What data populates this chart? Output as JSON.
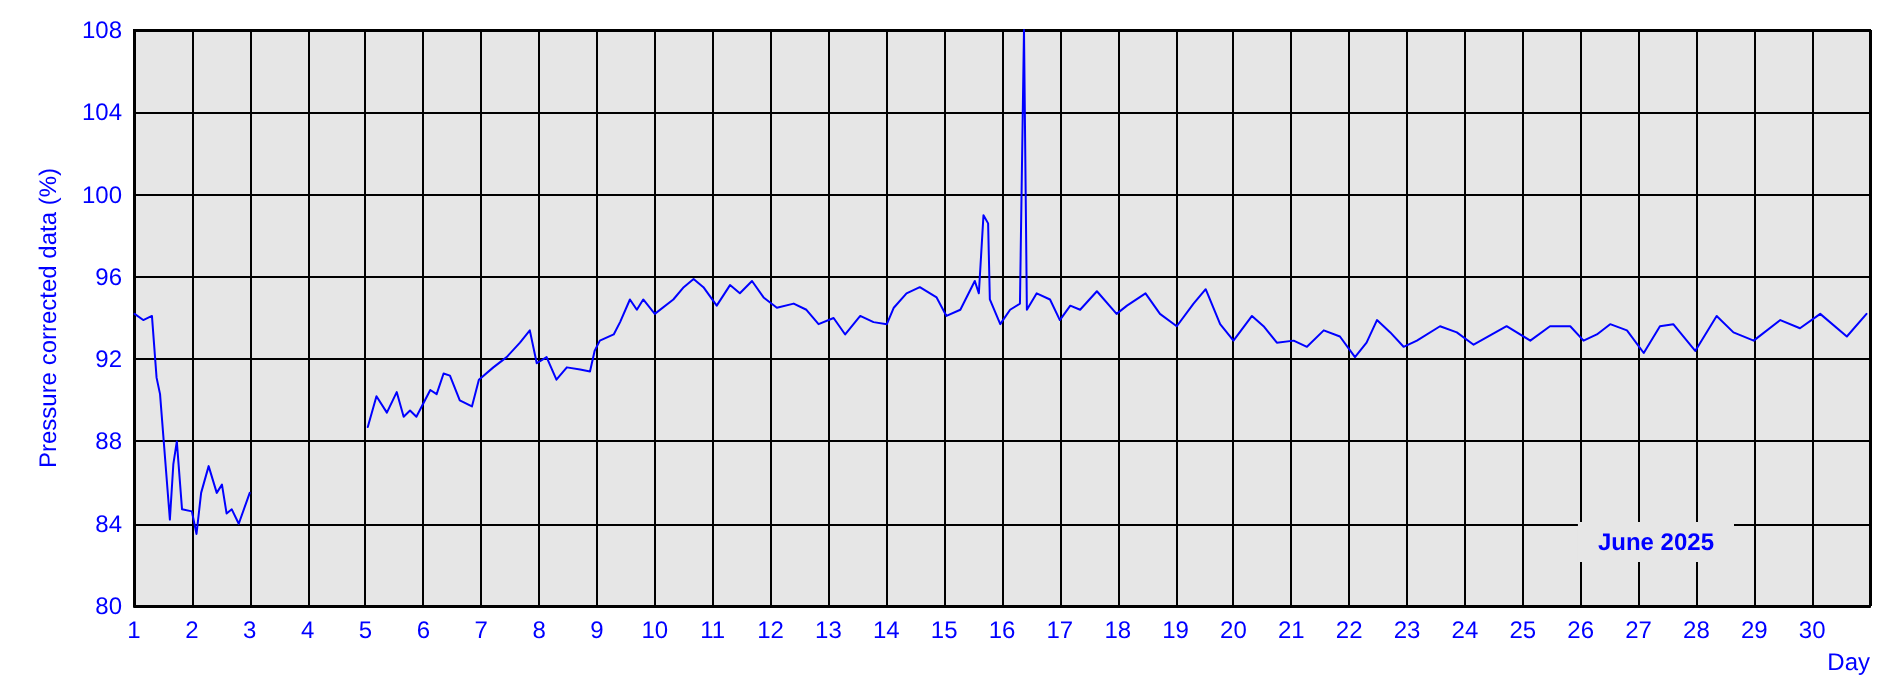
{
  "chart_data": {
    "type": "line",
    "xlabel": "Day",
    "ylabel": "Pressure corrected data (%)",
    "annotations": [
      "June 2025"
    ],
    "xlim": [
      1,
      31
    ],
    "xticks": [
      1,
      2,
      3,
      4,
      5,
      6,
      7,
      8,
      9,
      10,
      11,
      12,
      13,
      14,
      15,
      16,
      17,
      18,
      19,
      20,
      21,
      22,
      23,
      24,
      25,
      26,
      27,
      28,
      29,
      30
    ],
    "ylim": [
      80,
      108
    ],
    "yticks": [
      80,
      84,
      88,
      92,
      96,
      100,
      104,
      108
    ],
    "grid": true,
    "marker": "none",
    "line_style": "solid",
    "series": [
      {
        "color": "#0000ff",
        "x": [
          1.01,
          1.16,
          1.31,
          1.39,
          1.45,
          1.62,
          1.68,
          1.74,
          1.83,
          2.0,
          2.08,
          2.16,
          2.29,
          2.43,
          2.52,
          2.6,
          2.69,
          2.81,
          3.0,
          4.0,
          5.04,
          5.19,
          5.37,
          5.54,
          5.66,
          5.77,
          5.88,
          6.12,
          6.23,
          6.35,
          6.46,
          6.63,
          6.84,
          6.96,
          7.21,
          7.44,
          7.67,
          7.84,
          7.96,
          8.13,
          8.3,
          8.48,
          8.71,
          8.88,
          8.96,
          9.05,
          9.29,
          9.4,
          9.57,
          9.69,
          9.8,
          10.0,
          10.32,
          10.5,
          10.67,
          10.84,
          11.07,
          11.3,
          11.47,
          11.68,
          11.88,
          12.11,
          12.4,
          12.62,
          12.83,
          13.09,
          13.29,
          13.55,
          13.78,
          14.01,
          14.13,
          14.35,
          14.58,
          14.87,
          15.04,
          15.28,
          15.53,
          15.6,
          15.68,
          15.76,
          15.79,
          15.97,
          16.14,
          16.31,
          16.38,
          16.43,
          16.6,
          16.83,
          17.0,
          17.18,
          17.35,
          17.64,
          17.98,
          18.16,
          18.48,
          18.73,
          19.02,
          19.31,
          19.52,
          19.77,
          20.0,
          20.32,
          20.52,
          20.75,
          21.04,
          21.27,
          21.56,
          21.84,
          22.1,
          22.3,
          22.48,
          22.71,
          22.94,
          23.17,
          23.57,
          23.86,
          24.15,
          24.72,
          25.13,
          25.47,
          25.82,
          26.05,
          26.28,
          26.51,
          26.8,
          27.09,
          27.37,
          27.6,
          27.98,
          28.35,
          28.64,
          28.99,
          29.45,
          29.79,
          30.14,
          30.6,
          30.94
        ],
        "values": [
          94.2,
          93.9,
          94.1,
          91.1,
          90.3,
          84.2,
          86.9,
          88.0,
          84.7,
          84.6,
          83.5,
          85.5,
          86.8,
          85.5,
          85.9,
          84.5,
          84.7,
          84.0,
          85.5,
          null,
          88.7,
          90.2,
          89.4,
          90.4,
          89.2,
          89.5,
          89.2,
          90.5,
          90.3,
          91.3,
          91.2,
          90.0,
          89.7,
          91.0,
          91.6,
          92.1,
          92.8,
          93.4,
          91.8,
          92.1,
          91.0,
          91.6,
          91.5,
          91.4,
          92.4,
          92.9,
          93.2,
          93.8,
          94.9,
          94.4,
          94.9,
          94.2,
          94.9,
          95.5,
          95.9,
          95.5,
          94.6,
          95.6,
          95.2,
          95.8,
          95.0,
          94.5,
          94.7,
          94.4,
          93.7,
          94.0,
          93.2,
          94.1,
          93.8,
          93.7,
          94.5,
          95.2,
          95.5,
          95.0,
          94.1,
          94.4,
          95.8,
          95.2,
          99.0,
          98.6,
          94.9,
          93.7,
          94.4,
          94.7,
          108,
          94.4,
          95.2,
          94.9,
          93.9,
          94.6,
          94.4,
          95.3,
          94.2,
          94.6,
          95.2,
          94.2,
          93.6,
          94.7,
          95.4,
          93.7,
          92.9,
          94.1,
          93.6,
          92.8,
          92.9,
          92.6,
          93.4,
          93.1,
          92.1,
          92.8,
          93.9,
          93.3,
          92.6,
          92.9,
          93.6,
          93.3,
          92.7,
          93.6,
          92.9,
          93.6,
          93.6,
          92.9,
          93.2,
          93.7,
          93.4,
          92.3,
          93.6,
          93.7,
          92.4,
          94.1,
          93.3,
          92.9,
          93.9,
          93.5,
          94.2,
          93.1,
          94.2
        ]
      }
    ]
  }
}
